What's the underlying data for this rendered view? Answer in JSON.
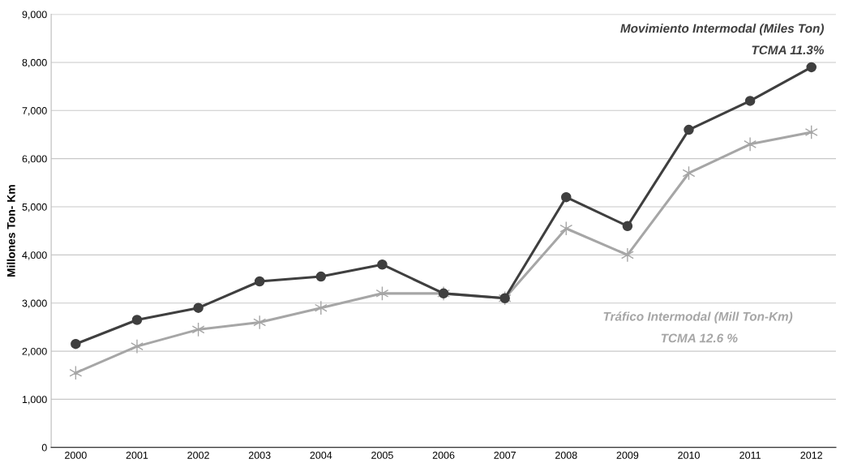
{
  "chart_data": {
    "type": "line",
    "ylabel": "Millones Ton- Km",
    "categories": [
      "2000",
      "2001",
      "2002",
      "2003",
      "2004",
      "2005",
      "2006",
      "2007",
      "2008",
      "2009",
      "2010",
      "2011",
      "2012"
    ],
    "series": [
      {
        "name": "Movimiento Intermodal (Miles Ton)",
        "color": "#3f3f3f",
        "marker": "circle",
        "values": [
          2150,
          2650,
          2900,
          3450,
          3550,
          3800,
          3200,
          3100,
          5200,
          4600,
          6600,
          7200,
          7900
        ]
      },
      {
        "name": "Tráfico Intermodal (Mill Ton-Km)",
        "color": "#a6a6a6",
        "marker": "cross",
        "values": [
          1550,
          2100,
          2450,
          2600,
          2900,
          3200,
          3200,
          3100,
          4550,
          4000,
          5700,
          6300,
          6550
        ]
      }
    ],
    "annotations": [
      "TCMA 11.3%",
      "TCMA 12.6 %"
    ],
    "ylim": [
      0,
      9000
    ],
    "yticks": [
      {
        "value": 0,
        "label": "0"
      },
      {
        "value": 1000,
        "label": "1,000"
      },
      {
        "value": 2000,
        "label": "2,000"
      },
      {
        "value": 3000,
        "label": "3,000"
      },
      {
        "value": 4000,
        "label": "4,000"
      },
      {
        "value": 5000,
        "label": "5,000"
      },
      {
        "value": 6000,
        "label": "6,000"
      },
      {
        "value": 7000,
        "label": "7,000"
      },
      {
        "value": 8000,
        "label": "8,000"
      },
      {
        "value": 9000,
        "label": "9,000"
      }
    ],
    "grid": "y",
    "legend": false,
    "line_style": "solid"
  }
}
